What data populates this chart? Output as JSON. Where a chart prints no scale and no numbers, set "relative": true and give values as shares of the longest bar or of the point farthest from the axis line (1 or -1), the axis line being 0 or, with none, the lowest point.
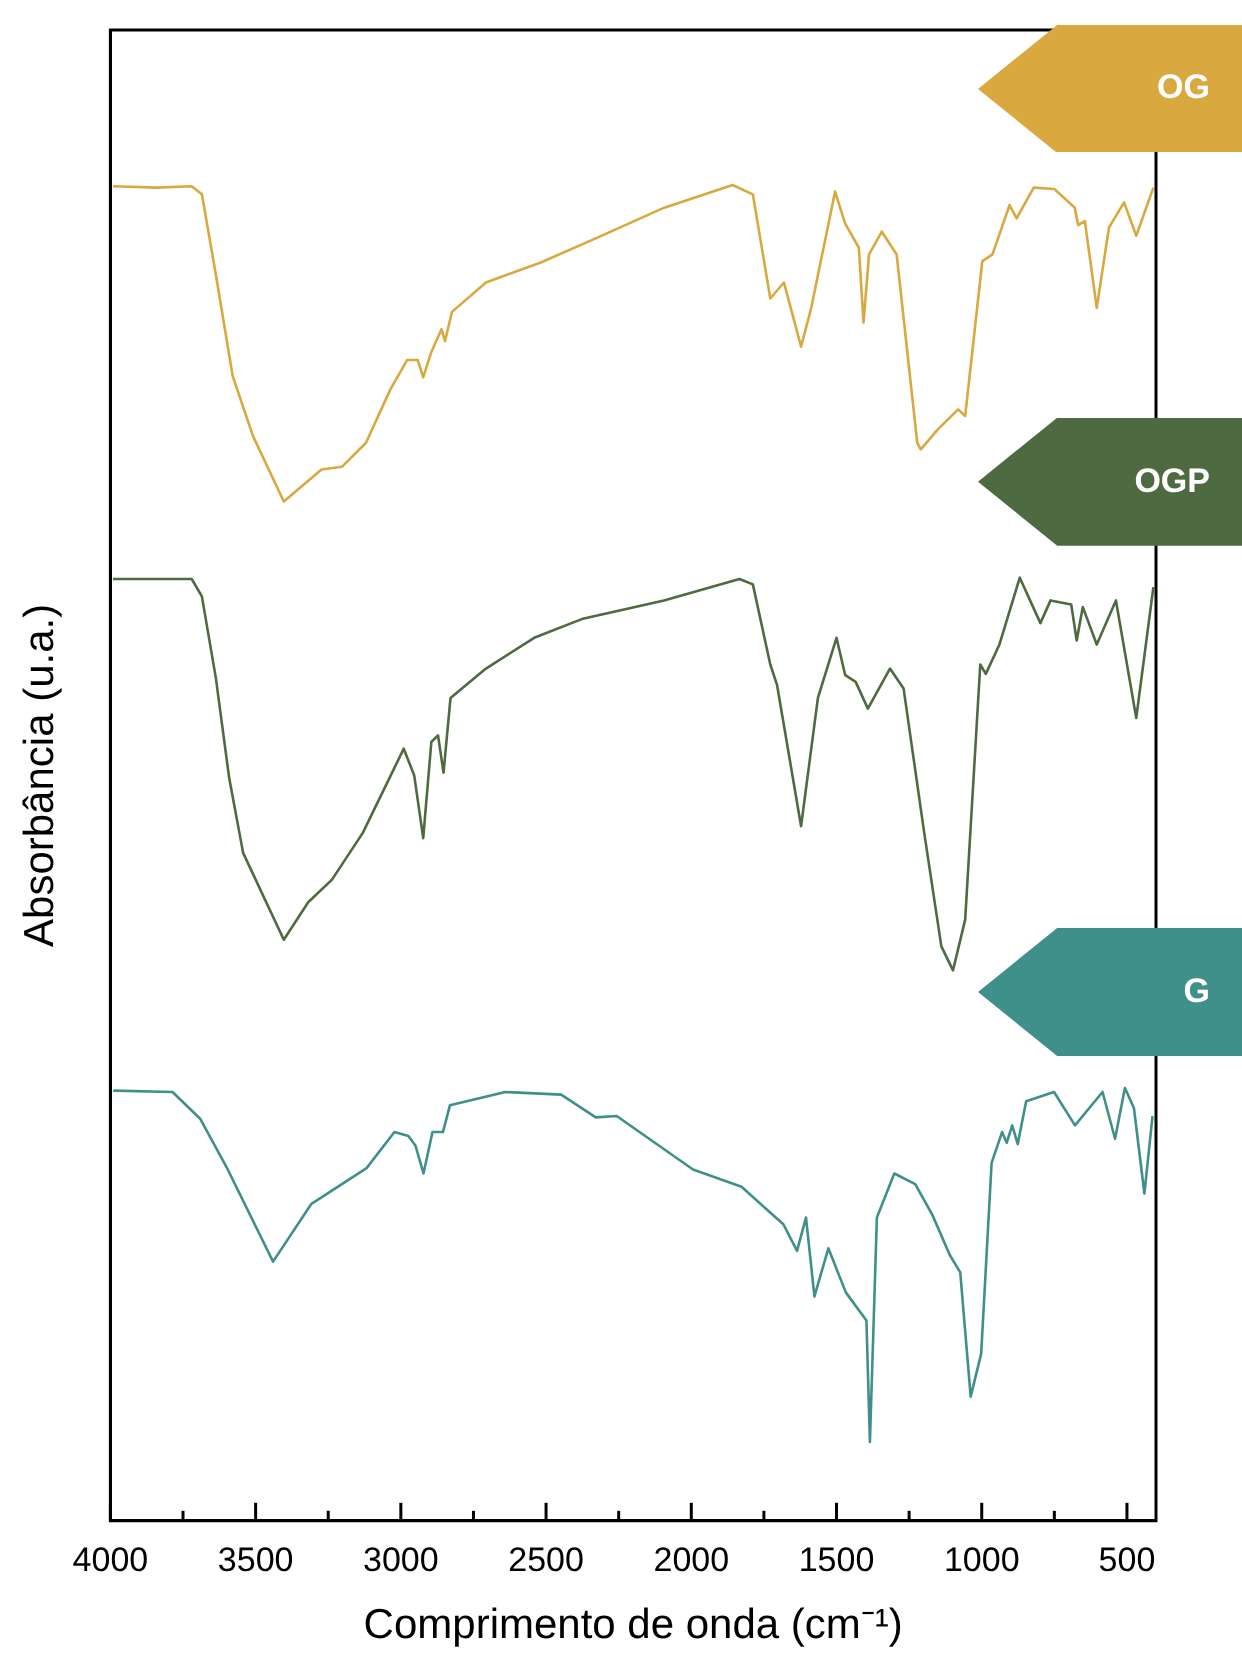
{
  "chart_data": {
    "type": "line",
    "relative": true,
    "xlabel": "Comprimento de onda (cm⁻¹)",
    "ylabel": "Absorbância (u.a.)",
    "xlim": [
      4000,
      400
    ],
    "xticks": [
      4000,
      {
        "value": 3750,
        "label": null
      },
      3500,
      {
        "value": 3250,
        "label": null
      },
      3000,
      {
        "value": 2750,
        "label": null
      },
      2500,
      {
        "value": 2250,
        "label": null
      },
      2000,
      {
        "value": 1750,
        "label": null
      },
      1500,
      {
        "value": 1250,
        "label": null
      },
      1000,
      {
        "value": 750,
        "label": null
      },
      500
    ],
    "grid": false,
    "legend": false,
    "marker": "none",
    "line_style": "solid",
    "series": [
      {
        "name": "OG",
        "color": "#d9a940",
        "x": [
          3991,
          3840,
          3720,
          3685,
          3637,
          3579,
          3509,
          3403,
          3343,
          3273,
          3203,
          3120,
          3036,
          2978,
          2942,
          2923,
          2895,
          2860,
          2848,
          2824,
          2707,
          2518,
          2329,
          2093,
          1858,
          1788,
          1728,
          1681,
          1622,
          1587,
          1505,
          1470,
          1423,
          1407,
          1388,
          1344,
          1293,
          1222,
          1210,
          1151,
          1081,
          1057,
          998,
          963,
          904,
          880,
          821,
          750,
          680,
          668,
          645,
          604,
          562,
          510,
          468,
          409
        ],
        "values": [
          0.999,
          0.998,
          0.999,
          0.993,
          0.933,
          0.857,
          0.812,
          0.763,
          0.774,
          0.787,
          0.789,
          0.807,
          0.847,
          0.869,
          0.869,
          0.856,
          0.875,
          0.892,
          0.883,
          0.905,
          0.927,
          0.942,
          0.96,
          0.983,
          1.0,
          0.993,
          0.915,
          0.927,
          0.879,
          0.908,
          0.995,
          0.971,
          0.953,
          0.897,
          0.948,
          0.965,
          0.948,
          0.807,
          0.802,
          0.817,
          0.832,
          0.827,
          0.943,
          0.948,
          0.985,
          0.975,
          0.998,
          0.997,
          0.983,
          0.97,
          0.973,
          0.908,
          0.968,
          0.987,
          0.962,
          0.998
        ]
      },
      {
        "name": "OGP",
        "color": "#4e6a40",
        "x": [
          3991,
          3720,
          3685,
          3637,
          3591,
          3543,
          3403,
          3319,
          3237,
          3131,
          2990,
          2954,
          2923,
          2895,
          2872,
          2853,
          2829,
          2707,
          2541,
          2377,
          2094,
          1834,
          1788,
          1728,
          1705,
          1622,
          1564,
          1500,
          1470,
          1434,
          1392,
          1316,
          1269,
          1198,
          1139,
          1099,
          1057,
          1005,
          986,
          939,
          869,
          798,
          763,
          692,
          673,
          652,
          604,
          538,
          468,
          409
        ],
        "values": [
          0.705,
          0.705,
          0.692,
          0.631,
          0.556,
          0.5,
          0.435,
          0.463,
          0.48,
          0.515,
          0.578,
          0.558,
          0.511,
          0.583,
          0.588,
          0.56,
          0.616,
          0.638,
          0.661,
          0.675,
          0.689,
          0.705,
          0.701,
          0.641,
          0.626,
          0.52,
          0.616,
          0.661,
          0.633,
          0.628,
          0.608,
          0.638,
          0.623,
          0.515,
          0.43,
          0.412,
          0.45,
          0.641,
          0.634,
          0.656,
          0.706,
          0.672,
          0.689,
          0.686,
          0.659,
          0.684,
          0.656,
          0.689,
          0.601,
          0.699
        ]
      },
      {
        "name": "G",
        "color": "#3f8f8a",
        "x": [
          3990,
          3786,
          3691,
          3596,
          3440,
          3309,
          3118,
          3022,
          2974,
          2950,
          2922,
          2891,
          2855,
          2831,
          2640,
          2448,
          2329,
          2257,
          1994,
          1827,
          1683,
          1636,
          1605,
          1576,
          1528,
          1468,
          1397,
          1385,
          1361,
          1301,
          1229,
          1170,
          1110,
          1074,
          1038,
          1002,
          966,
          930,
          914,
          895,
          876,
          847,
          751,
          679,
          584,
          541,
          507,
          476,
          440,
          412
        ],
        "values": [
          0.322,
          0.321,
          0.301,
          0.263,
          0.194,
          0.237,
          0.264,
          0.291,
          0.288,
          0.281,
          0.26,
          0.291,
          0.291,
          0.311,
          0.321,
          0.319,
          0.302,
          0.303,
          0.263,
          0.25,
          0.222,
          0.202,
          0.227,
          0.168,
          0.204,
          0.171,
          0.15,
          0.059,
          0.227,
          0.26,
          0.252,
          0.229,
          0.199,
          0.186,
          0.093,
          0.125,
          0.268,
          0.291,
          0.283,
          0.296,
          0.282,
          0.314,
          0.321,
          0.296,
          0.321,
          0.286,
          0.324,
          0.309,
          0.245,
          0.303
        ]
      }
    ]
  }
}
